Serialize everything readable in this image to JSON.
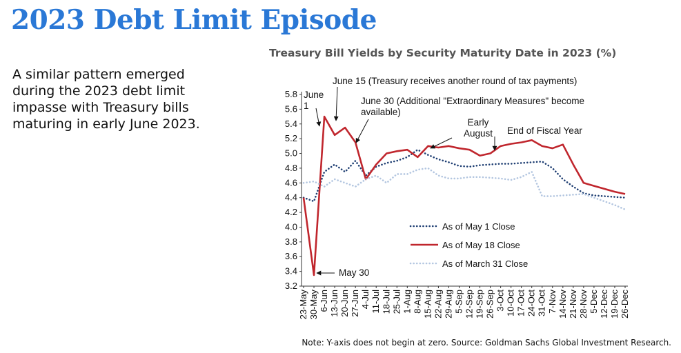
{
  "header": {
    "title": "2023 Debt Limit Episode"
  },
  "body": {
    "text": "A similar pattern emerged during the 2023 debt limit impasse with Treasury bills maturing in early June 2023."
  },
  "footer": {
    "note": "Note: Y-axis does not begin at zero. Source: Goldman Sachs Global Investment Research."
  },
  "chart_data": {
    "type": "line",
    "title": "Treasury Bill Yields by Security Maturity Date in 2023 (%)",
    "categories": [
      "23-May",
      "30-May",
      "6-Jun",
      "13-Jun",
      "20-Jun",
      "27-Jun",
      "4-Jul",
      "11-Jul",
      "18-Jul",
      "25-Jul",
      "1-Aug",
      "8-Aug",
      "15-Aug",
      "22-Aug",
      "29-Aug",
      "5-Sep",
      "12-Sep",
      "19-Sep",
      "26-Sep",
      "3-Oct",
      "10-Oct",
      "17-Oct",
      "24-Oct",
      "31-Oct",
      "7-Nov",
      "14-Nov",
      "21-Nov",
      "28-Nov",
      "5-Dec",
      "12-Dec",
      "19-Dec",
      "26-Dec"
    ],
    "series": [
      {
        "name": "As of May 1 Close",
        "color": "#1f3f73",
        "style": "dotted",
        "values": [
          4.4,
          4.35,
          4.75,
          4.85,
          4.75,
          4.9,
          4.7,
          4.82,
          4.87,
          4.9,
          4.95,
          5.05,
          4.98,
          4.92,
          4.88,
          4.83,
          4.82,
          4.84,
          4.85,
          4.86,
          4.86,
          4.87,
          4.88,
          4.89,
          4.8,
          4.65,
          4.55,
          4.46,
          4.43,
          4.42,
          4.41,
          4.4
        ]
      },
      {
        "name": "As of May 18 Close",
        "color": "#c0262d",
        "style": "solid",
        "values": [
          4.4,
          3.35,
          5.5,
          5.25,
          5.35,
          5.15,
          4.65,
          4.85,
          5.0,
          5.03,
          5.05,
          4.95,
          5.1,
          5.08,
          5.1,
          5.07,
          5.05,
          4.97,
          5.0,
          5.1,
          5.13,
          5.15,
          5.18,
          5.1,
          5.07,
          5.12,
          4.85,
          4.6,
          4.56,
          4.52,
          4.48,
          4.45
        ]
      },
      {
        "name": "As of March 31 Close",
        "color": "#b3c6e0",
        "style": "dotted",
        "values": [
          4.6,
          4.62,
          4.55,
          4.65,
          4.6,
          4.55,
          4.65,
          4.7,
          4.6,
          4.72,
          4.72,
          4.78,
          4.8,
          4.7,
          4.66,
          4.66,
          4.68,
          4.68,
          4.67,
          4.66,
          4.64,
          4.68,
          4.75,
          4.42,
          4.42,
          4.43,
          4.44,
          4.45,
          4.4,
          4.35,
          4.3,
          4.24
        ]
      }
    ],
    "ylim": [
      3.2,
      5.8
    ],
    "yticks": [
      3.2,
      3.4,
      3.6,
      3.8,
      {
        "value": 4,
        "label": "4.0"
      },
      4.2,
      4.4,
      4.6,
      4.8,
      {
        "value": 5,
        "label": "5.0"
      },
      5.2,
      5.4,
      5.6,
      5.8
    ],
    "annotations": [
      "June 1",
      "June 15 (Treasury receives another round of tax payments)",
      "June 30 (Additional \"Extraordinary Measures\" become available)",
      "Early August",
      "End of Fiscal Year",
      "May 30"
    ]
  }
}
